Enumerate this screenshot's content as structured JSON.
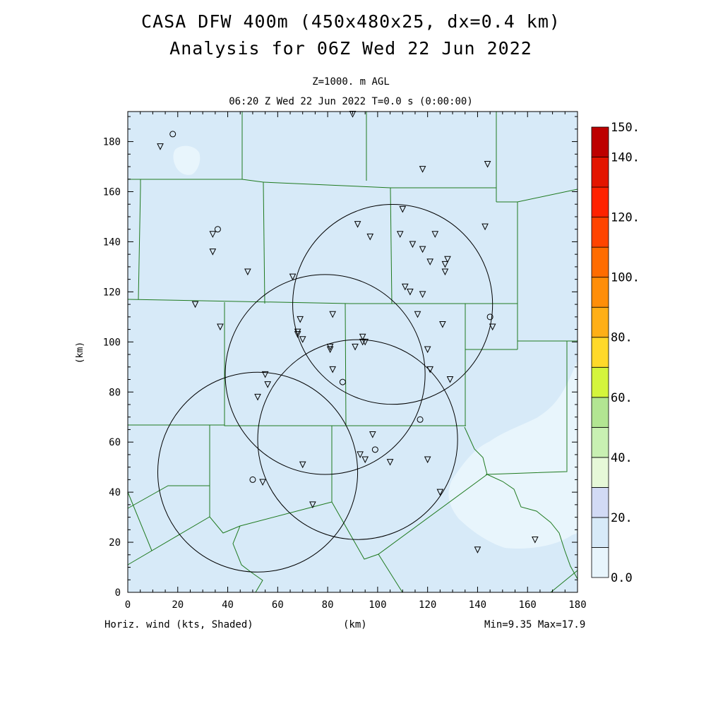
{
  "header": {
    "title_line1": "CASA DFW 400m (450x480x25, dx=0.4 km)",
    "title_line2": "Analysis for 06Z Wed 22 Jun 2022",
    "level": "Z=1000. m AGL",
    "time": "06:20 Z Wed 22 Jun 2022   T=0.0 s (0:00:00)"
  },
  "footer": {
    "left": "Horiz. wind (kts, Shaded)",
    "center": "(km)",
    "right": "Min=9.35 Max=17.9"
  },
  "axes": {
    "y_label": "(km)",
    "x_ticks": [
      "0",
      "20",
      "40",
      "60",
      "80",
      "100",
      "120",
      "140",
      "160",
      "180"
    ],
    "y_ticks": [
      "0",
      "20",
      "40",
      "60",
      "80",
      "100",
      "120",
      "140",
      "160",
      "180"
    ],
    "xlim": [
      0,
      180
    ],
    "ylim": [
      0,
      192
    ]
  },
  "colorbar": {
    "labels": [
      {
        "text": "150.",
        "value": 150
      },
      {
        "text": "140.",
        "value": 140
      },
      {
        "text": "120.",
        "value": 120
      },
      {
        "text": "100.",
        "value": 100
      },
      {
        "text": "80.",
        "value": 80
      },
      {
        "text": "60.",
        "value": 60
      },
      {
        "text": "40.",
        "value": 40
      },
      {
        "text": "20.",
        "value": 20
      },
      {
        "text": "0.0",
        "value": 0
      }
    ],
    "bins": [
      {
        "lo": 0,
        "hi": 10,
        "color": "#e8f5fc"
      },
      {
        "lo": 10,
        "hi": 20,
        "color": "#d7eaf8"
      },
      {
        "lo": 20,
        "hi": 30,
        "color": "#d2daf5"
      },
      {
        "lo": 30,
        "hi": 40,
        "color": "#e6f8d8"
      },
      {
        "lo": 40,
        "hi": 50,
        "color": "#c8f0b2"
      },
      {
        "lo": 50,
        "hi": 60,
        "color": "#b2e592"
      },
      {
        "lo": 60,
        "hi": 70,
        "color": "#d4f53c"
      },
      {
        "lo": 70,
        "hi": 80,
        "color": "#ffd92a"
      },
      {
        "lo": 80,
        "hi": 90,
        "color": "#ffaf16"
      },
      {
        "lo": 90,
        "hi": 100,
        "color": "#ff8e08"
      },
      {
        "lo": 100,
        "hi": 110,
        "color": "#ff6c00"
      },
      {
        "lo": 110,
        "hi": 120,
        "color": "#ff4400"
      },
      {
        "lo": 120,
        "hi": 130,
        "color": "#ff2200"
      },
      {
        "lo": 130,
        "hi": 140,
        "color": "#e31500"
      },
      {
        "lo": 140,
        "hi": 150,
        "color": "#bd0000"
      }
    ]
  },
  "colors": {
    "field_background": "#d7eaf8",
    "light_patch": "#e8f5fc",
    "county_lines": "#1f7a1f",
    "radar_rings": "#000000"
  },
  "chart_data": {
    "type": "map",
    "field": "horizontal wind (kts, shaded)",
    "radar_rings": [
      {
        "cx": 106,
        "cy": 115,
        "r": 40
      },
      {
        "cx": 79,
        "cy": 87,
        "r": 40
      },
      {
        "cx": 92,
        "cy": 61,
        "r": 40
      },
      {
        "cx": 52,
        "cy": 48,
        "r": 40
      }
    ],
    "stations_triangle": [
      [
        13,
        178
      ],
      [
        90,
        191
      ],
      [
        118,
        169
      ],
      [
        144,
        171
      ],
      [
        110,
        153
      ],
      [
        34,
        143
      ],
      [
        34,
        136
      ],
      [
        48,
        128
      ],
      [
        66,
        126
      ],
      [
        27,
        115
      ],
      [
        37,
        106
      ],
      [
        69,
        109
      ],
      [
        68,
        104
      ],
      [
        68,
        103
      ],
      [
        70,
        101
      ],
      [
        82,
        111
      ],
      [
        92,
        147
      ],
      [
        97,
        142
      ],
      [
        109,
        143
      ],
      [
        114,
        139
      ],
      [
        118,
        137
      ],
      [
        123,
        143
      ],
      [
        121,
        132
      ],
      [
        127,
        131
      ],
      [
        128,
        133
      ],
      [
        127,
        128
      ],
      [
        111,
        122
      ],
      [
        113,
        120
      ],
      [
        118,
        119
      ],
      [
        116,
        111
      ],
      [
        126,
        107
      ],
      [
        143,
        146
      ],
      [
        146,
        106
      ],
      [
        94,
        102
      ],
      [
        94,
        100
      ],
      [
        91,
        98
      ],
      [
        95,
        100
      ],
      [
        81,
        98
      ],
      [
        81,
        97
      ],
      [
        82,
        89
      ],
      [
        55,
        87
      ],
      [
        56,
        83
      ],
      [
        52,
        78
      ],
      [
        120,
        97
      ],
      [
        121,
        89
      ],
      [
        129,
        85
      ],
      [
        98,
        63
      ],
      [
        93,
        55
      ],
      [
        95,
        53
      ],
      [
        105,
        52
      ],
      [
        120,
        53
      ],
      [
        70,
        51
      ],
      [
        54,
        44
      ],
      [
        74,
        35
      ],
      [
        125,
        40
      ],
      [
        140,
        17
      ],
      [
        163,
        21
      ]
    ],
    "stations_circle": [
      [
        18,
        183
      ],
      [
        36,
        145
      ],
      [
        145,
        110
      ],
      [
        86,
        84
      ],
      [
        117,
        69
      ],
      [
        99,
        57
      ],
      [
        50,
        45
      ]
    ]
  }
}
